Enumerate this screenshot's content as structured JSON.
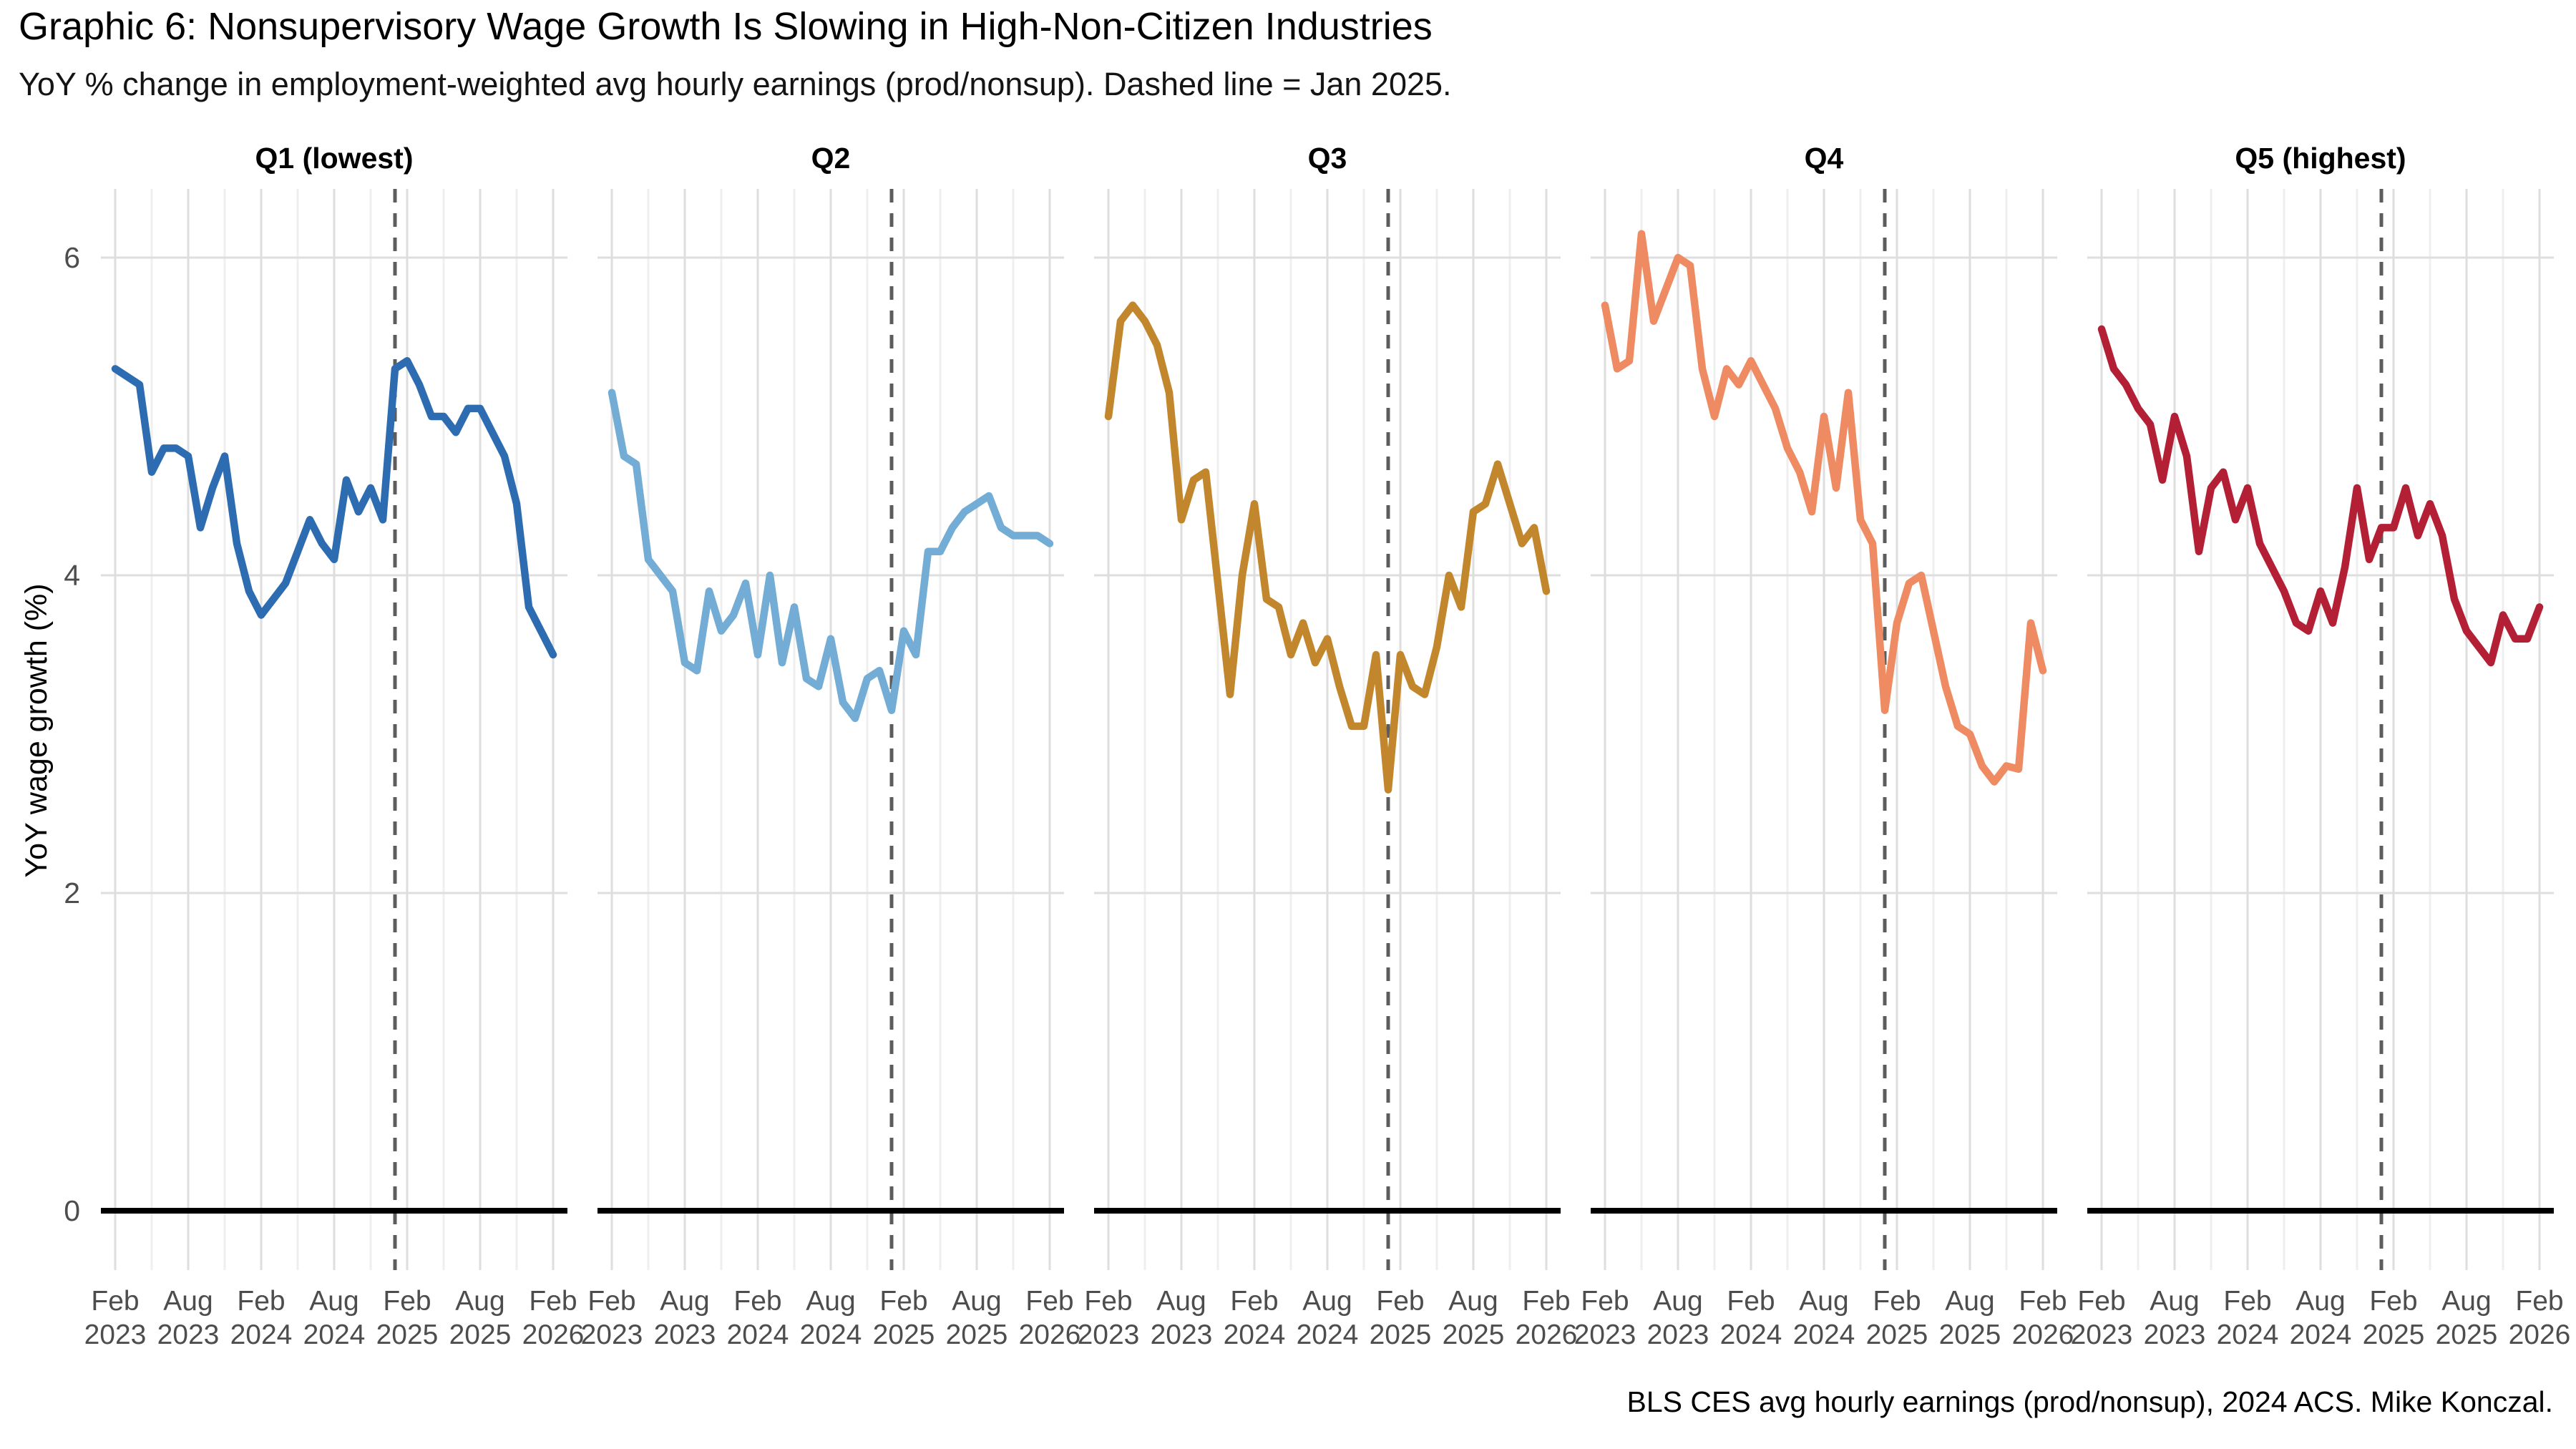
{
  "header": {
    "title": "Graphic 6: Nonsupervisory Wage Growth Is Slowing in High-Non-Citizen Industries",
    "subtitle": "YoY % change in employment-weighted avg hourly earnings (prod/nonsup). Dashed line = Jan 2025."
  },
  "caption": "BLS CES avg hourly earnings (prod/nonsup), 2024 ACS. Mike Konczal.",
  "chart_data": {
    "type": "line",
    "title": "Graphic 6: Nonsupervisory Wage Growth Is Slowing in High-Non-Citizen Industries",
    "subtitle": "YoY % change in employment-weighted avg hourly earnings (prod/nonsup). Dashed line = Jan 2025.",
    "ylabel": "YoY wage growth (%)",
    "xlabel": "",
    "ylim": [
      -0.37,
      6.43
    ],
    "yticks": [
      0,
      2,
      4,
      6
    ],
    "grid": "vertical major every 6 months, vertical minor every 3 months, horizontal major at 2/4/6, heavy black baseline at 0",
    "legend": "none (one colored facet per quintile)",
    "x": [
      "Feb 2023",
      "Mar 2023",
      "Apr 2023",
      "May 2023",
      "Jun 2023",
      "Jul 2023",
      "Aug 2023",
      "Sep 2023",
      "Oct 2023",
      "Nov 2023",
      "Dec 2023",
      "Jan 2024",
      "Feb 2024",
      "Mar 2024",
      "Apr 2024",
      "May 2024",
      "Jun 2024",
      "Jul 2024",
      "Aug 2024",
      "Sep 2024",
      "Oct 2024",
      "Nov 2024",
      "Dec 2024",
      "Jan 2025",
      "Feb 2025",
      "Mar 2025",
      "Apr 2025",
      "May 2025",
      "Jun 2025",
      "Jul 2025",
      "Aug 2025",
      "Sep 2025",
      "Oct 2025",
      "Nov 2025",
      "Dec 2025",
      "Jan 2026",
      "Feb 2026"
    ],
    "xticks": [
      "Feb 2023",
      "Aug 2023",
      "Feb 2024",
      "Aug 2024",
      "Feb 2025",
      "Aug 2025",
      "Feb 2026"
    ],
    "xtick_indices": [
      0,
      6,
      12,
      18,
      24,
      30,
      36
    ],
    "dashed_vline": {
      "label": "Jan 2025",
      "x_index": 23,
      "color": "#5c5c5c"
    },
    "series": [
      {
        "name": "Q1 (lowest)",
        "color": "#2d6cb0",
        "values": [
          5.3,
          5.25,
          5.2,
          4.65,
          4.8,
          4.8,
          4.75,
          4.3,
          4.55,
          4.75,
          4.2,
          3.9,
          3.75,
          3.85,
          3.95,
          4.15,
          4.35,
          4.2,
          4.1,
          4.6,
          4.4,
          4.55,
          4.35,
          5.3,
          5.35,
          5.2,
          5.0,
          5.0,
          4.9,
          5.05,
          5.05,
          4.9,
          4.75,
          4.45,
          3.8,
          3.65,
          3.5
        ]
      },
      {
        "name": "Q2",
        "color": "#73acd4",
        "values": [
          5.15,
          4.75,
          4.7,
          4.1,
          4.0,
          3.9,
          3.45,
          3.4,
          3.9,
          3.65,
          3.75,
          3.95,
          3.5,
          4.0,
          3.45,
          3.8,
          3.35,
          3.3,
          3.6,
          3.2,
          3.1,
          3.35,
          3.4,
          3.15,
          3.65,
          3.5,
          4.15,
          4.15,
          4.3,
          4.4,
          4.45,
          4.5,
          4.3,
          4.25,
          4.25,
          4.25,
          4.2
        ]
      },
      {
        "name": "Q3",
        "color": "#c2862c",
        "values": [
          5.0,
          5.6,
          5.7,
          5.6,
          5.45,
          5.15,
          4.35,
          4.6,
          4.65,
          3.95,
          3.25,
          4.0,
          4.45,
          3.85,
          3.8,
          3.5,
          3.7,
          3.45,
          3.6,
          3.3,
          3.05,
          3.05,
          3.5,
          2.65,
          3.5,
          3.3,
          3.25,
          3.55,
          4.0,
          3.8,
          4.4,
          4.45,
          4.7,
          4.45,
          4.2,
          4.3,
          3.9
        ]
      },
      {
        "name": "Q4",
        "color": "#ef8b62",
        "values": [
          5.7,
          5.3,
          5.35,
          6.15,
          5.6,
          5.8,
          6.0,
          5.95,
          5.3,
          5.0,
          5.3,
          5.2,
          5.35,
          5.2,
          5.05,
          4.8,
          4.65,
          4.4,
          5.0,
          4.55,
          5.15,
          4.35,
          4.2,
          3.15,
          3.7,
          3.95,
          4.0,
          3.65,
          3.3,
          3.05,
          3.0,
          2.8,
          2.7,
          2.8,
          2.78,
          3.7,
          3.4
        ]
      },
      {
        "name": "Q5 (highest)",
        "color": "#b31f35",
        "values": [
          5.55,
          5.3,
          5.2,
          5.05,
          4.95,
          4.6,
          5.0,
          4.75,
          4.15,
          4.55,
          4.65,
          4.35,
          4.55,
          4.2,
          4.05,
          3.9,
          3.7,
          3.65,
          3.9,
          3.7,
          4.05,
          4.55,
          4.1,
          4.3,
          4.3,
          4.55,
          4.25,
          4.45,
          4.25,
          3.85,
          3.65,
          3.55,
          3.45,
          3.75,
          3.6,
          3.6,
          3.8
        ]
      }
    ],
    "style": {
      "grid_major_color": "#dedede",
      "grid_minor_color": "#efefef",
      "zero_line_color": "#000000",
      "tick_label_color": "#4d4d4d"
    }
  }
}
